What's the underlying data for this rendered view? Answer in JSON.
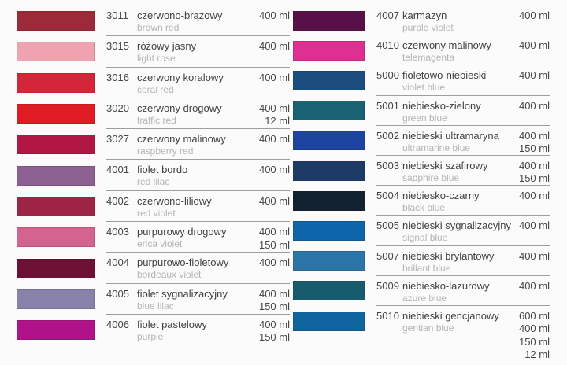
{
  "page": {
    "background": "#fcfbfb",
    "divider_color": "#9e9e9e",
    "text_color": "#404040",
    "secondary_text_color": "#b2b4b6"
  },
  "chart_data": [
    {
      "type": "table",
      "columns": [
        "swatch_color",
        "code",
        "name_pl",
        "name_en",
        "volumes"
      ],
      "rows": [
        {
          "code": "3011",
          "name_pl": "czerwono-brązowy",
          "name_en": "brown red",
          "volumes": [
            "400 ml"
          ],
          "color": "#9d2a38"
        },
        {
          "code": "3015",
          "name_pl": "różowy jasny",
          "name_en": "light rose",
          "volumes": [
            "400 ml"
          ],
          "color": "#efa2b0"
        },
        {
          "code": "3016",
          "name_pl": "czerwony koralowy",
          "name_en": "coral red",
          "volumes": [
            "400 ml"
          ],
          "color": "#d32638"
        },
        {
          "code": "3020",
          "name_pl": "czerwony drogowy",
          "name_en": "traffic red",
          "volumes": [
            "400 ml",
            "12 ml"
          ],
          "color": "#df1b24"
        },
        {
          "code": "3027",
          "name_pl": "czerwony malinowy",
          "name_en": "raspberry red",
          "volumes": [
            "400 ml"
          ],
          "color": "#b11745"
        },
        {
          "code": "4001",
          "name_pl": "fiolet bordo",
          "name_en": "red lilac",
          "volumes": [
            "400 ml"
          ],
          "color": "#8d6191"
        },
        {
          "code": "4002",
          "name_pl": "czerwono-liliowy",
          "name_en": "red violet",
          "volumes": [
            "400 ml"
          ],
          "color": "#9d2443"
        },
        {
          "code": "4003",
          "name_pl": "purpurowy drogowy",
          "name_en": "erica violet",
          "volumes": [
            "400 ml",
            "150 ml"
          ],
          "color": "#d5638f"
        },
        {
          "code": "4004",
          "name_pl": "purpurowo-fioletowy",
          "name_en": "bordeaux violet",
          "volumes": [
            "400 ml"
          ],
          "color": "#6c1034"
        },
        {
          "code": "4005",
          "name_pl": "fiolet sygnalizacyjny",
          "name_en": "blue lilac",
          "volumes": [
            "400 ml",
            "150 ml"
          ],
          "color": "#8983ac"
        },
        {
          "code": "4006",
          "name_pl": "fiolet pastelowy",
          "name_en": "purple",
          "volumes": [
            "400 ml",
            "150 ml"
          ],
          "color": "#b01289"
        }
      ]
    },
    {
      "type": "table",
      "columns": [
        "swatch_color",
        "code",
        "name_pl",
        "name_en",
        "volumes"
      ],
      "rows": [
        {
          "code": "4007",
          "name_pl": "karmazyn",
          "name_en": "purple violet",
          "volumes": [
            "400 ml"
          ],
          "color": "#581048"
        },
        {
          "code": "4010",
          "name_pl": "czerwony malinowy",
          "name_en": "telemagenta",
          "volumes": [
            "400 ml"
          ],
          "color": "#dd3090"
        },
        {
          "code": "5000",
          "name_pl": "fioletowo-niebieski",
          "name_en": "violet blue",
          "volumes": [
            "400 ml"
          ],
          "color": "#1b4d7e"
        },
        {
          "code": "5001",
          "name_pl": "niebiesko-zielony",
          "name_en": "green blue",
          "volumes": [
            "400 ml"
          ],
          "color": "#1a6173"
        },
        {
          "code": "5002",
          "name_pl": "niebieski ultramaryna",
          "name_en": "ultramarine blue",
          "volumes": [
            "400 ml",
            "150 ml"
          ],
          "color": "#1c44a0"
        },
        {
          "code": "5003",
          "name_pl": "niebieski szafirowy",
          "name_en": "sapphire blue",
          "volumes": [
            "400 ml",
            "150 ml"
          ],
          "color": "#1e3a66"
        },
        {
          "code": "5004",
          "name_pl": "niebiesko-czarny",
          "name_en": "black blue",
          "volumes": [
            "400 ml"
          ],
          "color": "#132230"
        },
        {
          "code": "5005",
          "name_pl": "niebieski sygnalizacyjny",
          "name_en": "signal blue",
          "volumes": [
            "400 ml"
          ],
          "color": "#0e65a9"
        },
        {
          "code": "5007",
          "name_pl": "niebieski brylantowy",
          "name_en": "brillant blue",
          "volumes": [
            "400 ml"
          ],
          "color": "#2b76a7"
        },
        {
          "code": "5009",
          "name_pl": "niebiesko-lazurowy",
          "name_en": "azure blue",
          "volumes": [
            "400 ml"
          ],
          "color": "#165c6e"
        },
        {
          "code": "5010",
          "name_pl": "niebieski gencjanowy",
          "name_en": "gentian blue",
          "volumes": [
            "600 ml",
            "400 ml",
            "150 ml",
            "12 ml"
          ],
          "color": "#10659f"
        }
      ]
    }
  ]
}
